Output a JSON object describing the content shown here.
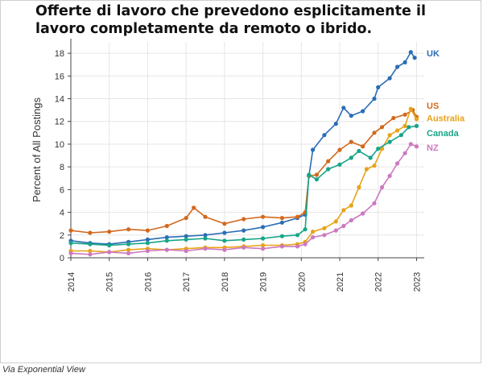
{
  "title": "Offerte di lavoro che prevedono esplicitamente il lavoro completamente da remoto o ibrido.",
  "credit": "Via Exponential View",
  "chart_data": {
    "type": "line",
    "title": "Offerte di lavoro che prevedono esplicitamente il lavoro completamente da remoto o ibrido.",
    "xlabel": "",
    "ylabel": "Percent of All Postings",
    "xlim": [
      2014,
      2023.2
    ],
    "ylim": [
      0,
      19
    ],
    "yticks": [
      0,
      2,
      4,
      6,
      8,
      10,
      12,
      14,
      16,
      18
    ],
    "xticks": [
      "2014",
      "2015",
      "2016",
      "2017",
      "2018",
      "2019",
      "2020",
      "2021",
      "2022",
      "2023"
    ],
    "grid": true,
    "legend": "labels-at-line-ends-right",
    "series": [
      {
        "name": "UK",
        "color": "#2a6db5",
        "x": [
          2014.0,
          2014.5,
          2015.0,
          2015.5,
          2016.0,
          2016.5,
          2017.0,
          2017.5,
          2018.0,
          2018.5,
          2019.0,
          2019.5,
          2019.9,
          2020.1,
          2020.2,
          2020.3,
          2020.6,
          2020.9,
          2021.1,
          2021.3,
          2021.6,
          2021.9,
          2022.0,
          2022.3,
          2022.5,
          2022.7,
          2022.85,
          2022.95
        ],
        "y": [
          1.5,
          1.3,
          1.2,
          1.4,
          1.6,
          1.8,
          1.9,
          2.0,
          2.2,
          2.4,
          2.7,
          3.1,
          3.5,
          3.8,
          7.2,
          9.5,
          10.8,
          11.8,
          13.2,
          12.5,
          12.9,
          14.0,
          15.0,
          15.8,
          16.8,
          17.2,
          18.1,
          17.6
        ]
      },
      {
        "name": "US",
        "color": "#d2691e",
        "x": [
          2014.0,
          2014.5,
          2015.0,
          2015.5,
          2016.0,
          2016.5,
          2017.0,
          2017.2,
          2017.5,
          2018.0,
          2018.5,
          2019.0,
          2019.5,
          2019.9,
          2020.1,
          2020.2,
          2020.4,
          2020.7,
          2021.0,
          2021.3,
          2021.6,
          2021.9,
          2022.1,
          2022.4,
          2022.7,
          2022.9,
          2023.0
        ],
        "y": [
          2.4,
          2.2,
          2.3,
          2.5,
          2.4,
          2.8,
          3.5,
          4.4,
          3.6,
          3.0,
          3.4,
          3.6,
          3.5,
          3.6,
          4.0,
          7.2,
          7.3,
          8.5,
          9.5,
          10.2,
          9.8,
          11.0,
          11.5,
          12.3,
          12.6,
          13.0,
          12.4
        ]
      },
      {
        "name": "Australia",
        "color": "#e8a317",
        "x": [
          2014.0,
          2014.5,
          2015.0,
          2015.5,
          2016.0,
          2016.5,
          2017.0,
          2017.5,
          2018.0,
          2018.5,
          2019.0,
          2019.5,
          2019.9,
          2020.1,
          2020.3,
          2020.6,
          2020.9,
          2021.1,
          2021.3,
          2021.5,
          2021.7,
          2021.9,
          2022.1,
          2022.3,
          2022.5,
          2022.7,
          2022.85,
          2023.0
        ],
        "y": [
          0.6,
          0.6,
          0.5,
          0.7,
          0.8,
          0.7,
          0.8,
          0.9,
          0.9,
          1.0,
          1.1,
          1.1,
          1.2,
          1.4,
          2.3,
          2.6,
          3.2,
          4.2,
          4.6,
          6.2,
          7.8,
          8.1,
          9.6,
          10.8,
          11.2,
          11.6,
          13.1,
          12.2
        ]
      },
      {
        "name": "Canada",
        "color": "#17a589",
        "x": [
          2014.0,
          2014.5,
          2015.0,
          2015.5,
          2016.0,
          2016.5,
          2017.0,
          2017.5,
          2018.0,
          2018.5,
          2019.0,
          2019.5,
          2019.9,
          2020.1,
          2020.2,
          2020.4,
          2020.7,
          2021.0,
          2021.3,
          2021.5,
          2021.8,
          2022.0,
          2022.3,
          2022.6,
          2022.8,
          2023.0
        ],
        "y": [
          1.3,
          1.2,
          1.1,
          1.2,
          1.3,
          1.5,
          1.6,
          1.7,
          1.5,
          1.6,
          1.7,
          1.9,
          2.0,
          2.5,
          7.3,
          6.9,
          7.8,
          8.2,
          8.8,
          9.4,
          8.8,
          9.6,
          10.2,
          10.8,
          11.5,
          11.6
        ]
      },
      {
        "name": "NZ",
        "color": "#cc79c0",
        "x": [
          2014.0,
          2014.5,
          2015.0,
          2015.5,
          2016.0,
          2016.5,
          2017.0,
          2017.5,
          2018.0,
          2018.5,
          2019.0,
          2019.5,
          2019.9,
          2020.1,
          2020.3,
          2020.6,
          2020.9,
          2021.1,
          2021.3,
          2021.6,
          2021.9,
          2022.1,
          2022.3,
          2022.5,
          2022.7,
          2022.85,
          2023.0
        ],
        "y": [
          0.4,
          0.3,
          0.5,
          0.4,
          0.6,
          0.7,
          0.6,
          0.8,
          0.7,
          0.9,
          0.8,
          1.0,
          1.0,
          1.2,
          1.8,
          2.0,
          2.4,
          2.8,
          3.3,
          3.9,
          4.8,
          6.2,
          7.2,
          8.3,
          9.2,
          10.0,
          9.8
        ]
      }
    ]
  }
}
